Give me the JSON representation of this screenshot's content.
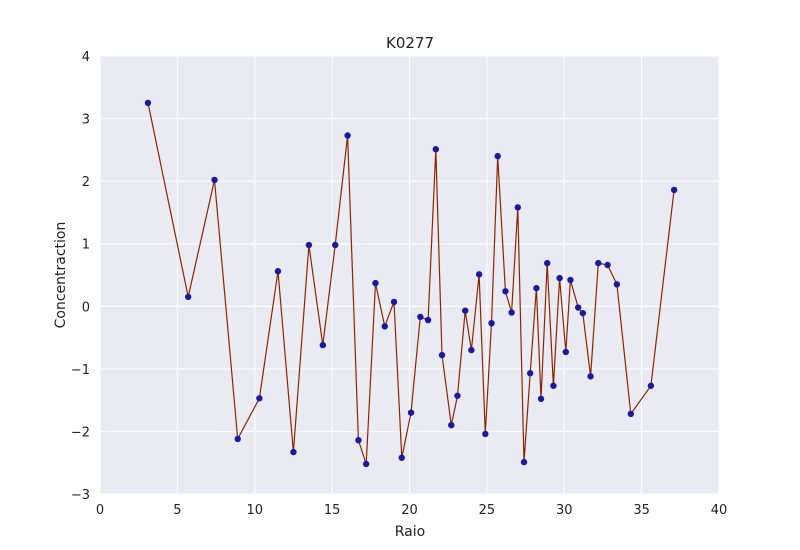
{
  "chart_data": {
    "type": "line",
    "title": "K0277",
    "xlabel": "Raio",
    "ylabel": "Concentraction",
    "xlim": [
      0,
      40
    ],
    "ylim": [
      -3,
      4
    ],
    "xticks": [
      "0",
      "5",
      "10",
      "15",
      "20",
      "25",
      "30",
      "35",
      "40"
    ],
    "yticks": [
      "−3",
      "−2",
      "−1",
      "0",
      "1",
      "2",
      "3",
      "4"
    ],
    "grid": true,
    "colors": {
      "background": "#eaeaf2",
      "grid": "#ffffff",
      "line": "#8b2500",
      "marker": "#1a1aa0"
    },
    "series": [
      {
        "x": [
          3.1,
          5.7,
          7.4,
          8.9,
          10.3,
          11.5,
          12.5,
          13.5,
          14.4,
          15.2,
          16.0,
          16.7,
          17.2,
          17.8,
          18.4,
          19.0,
          19.5,
          20.1,
          20.7,
          21.2,
          21.7,
          22.1,
          22.7,
          23.1,
          23.6,
          24.0,
          24.5,
          24.9,
          25.3,
          25.7,
          26.2,
          26.6,
          27.0,
          27.4,
          27.8,
          28.2,
          28.5,
          28.9,
          29.3,
          29.7,
          30.1,
          30.4,
          30.9,
          31.2,
          31.7,
          32.2,
          32.8,
          33.4,
          34.3,
          35.6,
          37.1
        ],
        "y": [
          3.25,
          0.15,
          2.02,
          -2.12,
          -1.47,
          0.56,
          -2.33,
          0.98,
          -0.62,
          0.98,
          2.73,
          -2.14,
          -2.52,
          0.37,
          -0.32,
          0.07,
          -2.42,
          -1.7,
          -0.17,
          -0.22,
          2.51,
          -0.78,
          -1.9,
          -1.43,
          -0.07,
          -0.7,
          0.51,
          -2.04,
          -0.27,
          2.4,
          0.24,
          -0.1,
          1.58,
          -2.49,
          -1.07,
          0.29,
          -1.48,
          0.69,
          -1.27,
          0.45,
          -0.73,
          0.42,
          -0.02,
          -0.11,
          -1.12,
          0.69,
          0.66,
          0.35,
          -1.72,
          -1.27,
          1.86
        ]
      }
    ]
  }
}
